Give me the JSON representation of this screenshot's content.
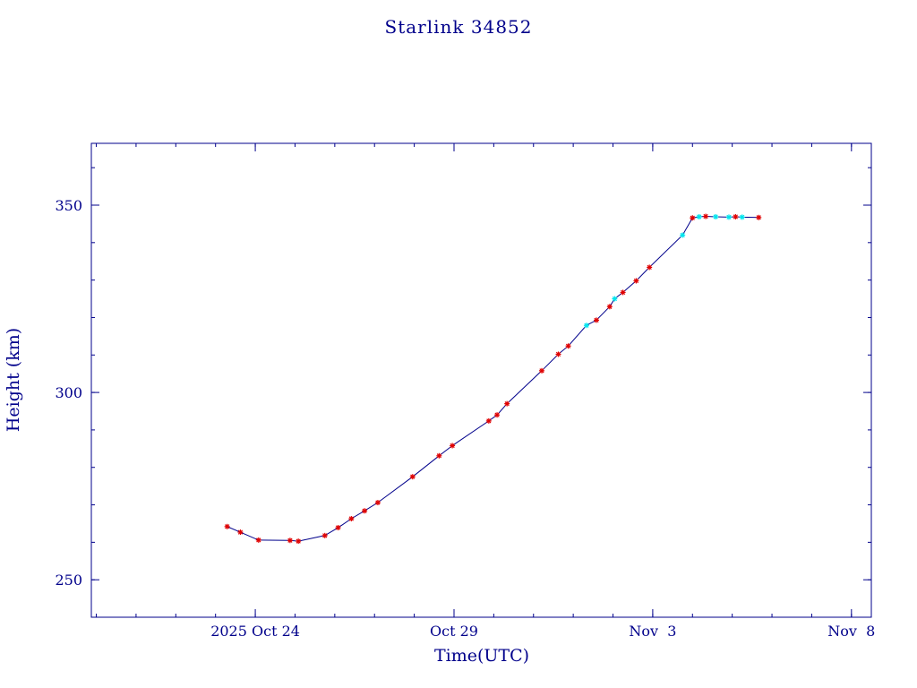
{
  "chart_data": {
    "type": "scatter",
    "title": "Starlink 34852",
    "xlabel": "Time(UTC)",
    "ylabel": "Height (km)",
    "xlim": [
      "2025-10-19T21:00:00Z",
      "2025-11-08T12:00:00Z"
    ],
    "ylim": [
      240,
      366.5
    ],
    "x_ticks": [
      {
        "date": "2025-10-24",
        "label": "2025 Oct 24"
      },
      {
        "date": "2025-10-29",
        "label": "Oct 29"
      },
      {
        "date": "2025-11-03",
        "label": "Nov  3"
      },
      {
        "date": "2025-11-08",
        "label": "Nov  8"
      }
    ],
    "y_ticks": [
      250,
      300,
      350
    ],
    "grid": false,
    "line_color": "#00008b",
    "series": [
      {
        "color": "#e00000",
        "marker": "star",
        "points": [
          [
            "2025-10-23T07:00:00Z",
            264.2
          ],
          [
            "2025-10-23T15:00:00Z",
            262.7
          ],
          [
            "2025-10-24T02:00:00Z",
            260.6
          ],
          [
            "2025-10-24T21:00:00Z",
            260.5
          ],
          [
            "2025-10-25T02:00:00Z",
            260.3
          ],
          [
            "2025-10-25T18:00:00Z",
            261.8
          ],
          [
            "2025-10-26T02:00:00Z",
            263.9
          ],
          [
            "2025-10-26T10:00:00Z",
            266.3
          ],
          [
            "2025-10-26T18:00:00Z",
            268.4
          ],
          [
            "2025-10-27T02:00:00Z",
            270.6
          ],
          [
            "2025-10-27T23:00:00Z",
            277.5
          ],
          [
            "2025-10-28T15:00:00Z",
            283.1
          ],
          [
            "2025-10-28T23:00:00Z",
            285.8
          ],
          [
            "2025-10-29T21:00:00Z",
            292.4
          ],
          [
            "2025-10-30T02:00:00Z",
            294.0
          ],
          [
            "2025-10-30T08:00:00Z",
            297.0
          ],
          [
            "2025-10-31T05:00:00Z",
            305.8
          ],
          [
            "2025-10-31T15:00:00Z",
            310.2
          ],
          [
            "2025-10-31T21:00:00Z",
            312.4
          ],
          [
            "2025-11-01T14:00:00Z",
            319.3
          ],
          [
            "2025-11-01T22:00:00Z",
            322.9
          ],
          [
            "2025-11-02T06:00:00Z",
            326.7
          ],
          [
            "2025-11-02T14:00:00Z",
            329.8
          ],
          [
            "2025-11-02T22:00:00Z",
            333.4
          ],
          [
            "2025-11-04T00:00:00Z",
            346.6
          ],
          [
            "2025-11-04T08:00:00Z",
            347.0
          ],
          [
            "2025-11-05T02:00:00Z",
            346.9
          ],
          [
            "2025-11-05T16:00:00Z",
            346.7
          ]
        ]
      },
      {
        "color": "#00e5ee",
        "marker": "star",
        "points": [
          [
            "2025-11-01T08:00:00Z",
            317.9
          ],
          [
            "2025-11-02T01:00:00Z",
            325.0
          ],
          [
            "2025-11-03T18:00:00Z",
            342.0
          ],
          [
            "2025-11-04T04:00:00Z",
            346.9
          ],
          [
            "2025-11-04T14:00:00Z",
            346.9
          ],
          [
            "2025-11-04T22:00:00Z",
            346.8
          ],
          [
            "2025-11-05T06:00:00Z",
            346.8
          ]
        ]
      }
    ]
  }
}
